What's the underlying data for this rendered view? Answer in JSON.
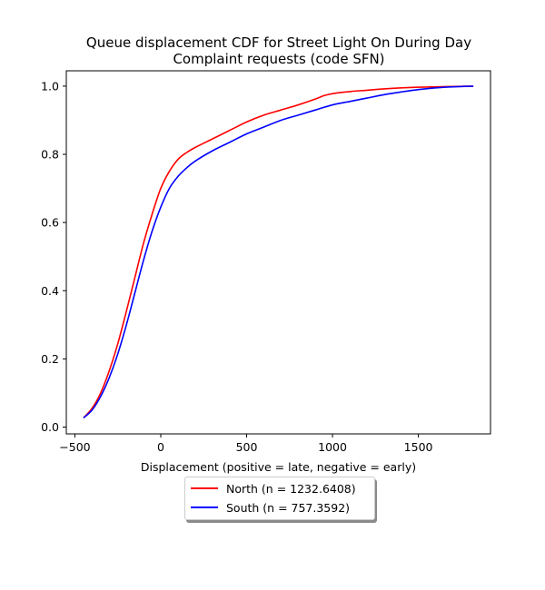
{
  "chart_data": {
    "type": "line",
    "title": "Queue displacement CDF for Street Light On During Day\nComplaint  requests (code SFN)",
    "xlabel": "Displacement (positive = late, negative = early)",
    "ylabel": "",
    "xlim": [
      -550,
      1920
    ],
    "ylim": [
      -0.02,
      1.045
    ],
    "xticks": [
      -500,
      0,
      500,
      1000,
      1500
    ],
    "xtick_labels": [
      "−500",
      "0",
      "500",
      "1000",
      "1500"
    ],
    "yticks": [
      0.0,
      0.2,
      0.4,
      0.6,
      0.8,
      1.0
    ],
    "ytick_labels": [
      "0.0",
      "0.2",
      "0.4",
      "0.6",
      "0.8",
      "1.0"
    ],
    "grid": false,
    "legend_position": "below-center",
    "series": [
      {
        "name": "North (n = 1232.6408)",
        "color": "#ff0000",
        "x": [
          -450,
          -400,
          -350,
          -300,
          -250,
          -200,
          -150,
          -100,
          -50,
          0,
          50,
          100,
          150,
          200,
          300,
          400,
          500,
          600,
          700,
          800,
          900,
          950,
          1000,
          1100,
          1200,
          1300,
          1400,
          1500,
          1600,
          1700,
          1820
        ],
        "y": [
          0.027,
          0.055,
          0.1,
          0.165,
          0.245,
          0.34,
          0.44,
          0.54,
          0.625,
          0.7,
          0.75,
          0.785,
          0.805,
          0.82,
          0.845,
          0.87,
          0.895,
          0.915,
          0.93,
          0.945,
          0.962,
          0.972,
          0.978,
          0.984,
          0.988,
          0.992,
          0.995,
          0.997,
          0.998,
          0.999,
          1.0
        ]
      },
      {
        "name": "South (n = 757.3592)",
        "color": "#0000ff",
        "x": [
          -450,
          -400,
          -350,
          -300,
          -250,
          -200,
          -150,
          -100,
          -50,
          0,
          50,
          100,
          150,
          200,
          300,
          400,
          500,
          600,
          700,
          800,
          900,
          1000,
          1100,
          1200,
          1300,
          1400,
          1500,
          1600,
          1700,
          1820
        ],
        "y": [
          0.027,
          0.05,
          0.09,
          0.145,
          0.215,
          0.3,
          0.395,
          0.49,
          0.575,
          0.645,
          0.7,
          0.735,
          0.76,
          0.78,
          0.81,
          0.835,
          0.86,
          0.88,
          0.9,
          0.915,
          0.93,
          0.945,
          0.955,
          0.965,
          0.975,
          0.983,
          0.99,
          0.995,
          0.998,
          1.0
        ]
      }
    ]
  }
}
